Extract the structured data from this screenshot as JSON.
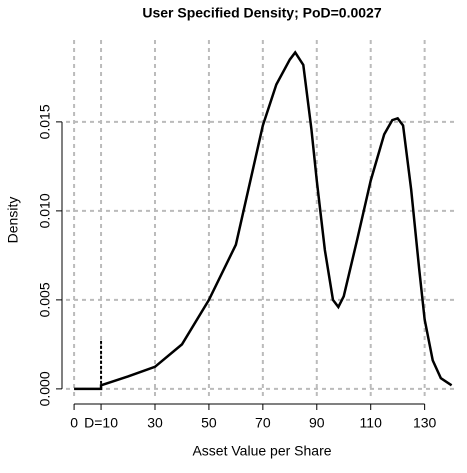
{
  "chart_data": {
    "type": "line",
    "title": "User Specified Density; PoD=0.0027",
    "x_label": "Asset Value per Share",
    "y_label": "Density",
    "x": [
      0,
      10,
      10,
      20,
      30,
      40,
      50,
      60,
      70,
      75,
      80,
      82,
      85,
      88,
      90,
      93,
      96,
      98,
      100,
      105,
      110,
      115,
      118,
      120,
      122,
      125,
      128,
      130,
      133,
      136,
      140
    ],
    "series": [
      {
        "color": "#000000",
        "values": [
          0,
          0,
          0.0002,
          0.0007,
          0.00124,
          0.0025,
          0.005,
          0.0081,
          0.0148,
          0.0171,
          0.0185,
          0.0189,
          0.0182,
          0.0146,
          0.0117,
          0.0078,
          0.005,
          0.0046,
          0.0052,
          0.0084,
          0.0117,
          0.0143,
          0.0151,
          0.0152,
          0.0148,
          0.0112,
          0.0067,
          0.0039,
          0.0016,
          0.0006,
          0.0002
        ]
      }
    ],
    "spike": {
      "x": 10,
      "value": 0.0028
    },
    "xlim": [
      -3,
      142
    ],
    "ylim": [
      -0.0004,
      0.0196
    ],
    "xticks": [
      0,
      {
        "value": 10,
        "label": "D=10"
      },
      30,
      50,
      70,
      90,
      110,
      130
    ],
    "yticks": [
      {
        "value": 0,
        "label": "0.000"
      },
      {
        "value": 0.005,
        "label": "0.005"
      },
      {
        "value": 0.01,
        "label": "0.010"
      },
      {
        "value": 0.015,
        "label": "0.015"
      }
    ],
    "grid": true
  }
}
